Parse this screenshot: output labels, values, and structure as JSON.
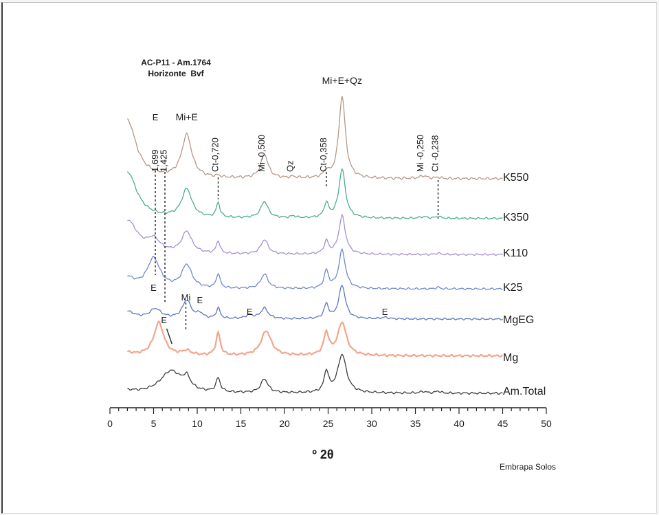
{
  "chart_data": {
    "type": "line",
    "title": "AC-P11 - Am.1764",
    "subtitle": "Horizonte  Bvf",
    "xlabel": "º 2θ",
    "ylabel": "",
    "xlim": [
      0,
      50
    ],
    "xticks": [
      "0",
      "5",
      "10",
      "15",
      "20",
      "25",
      "30",
      "35",
      "40",
      "45",
      "50"
    ],
    "grid": false,
    "legend": "right",
    "credit": "Embrapa Solos",
    "series": [
      {
        "name": "K550",
        "color": "#b59688",
        "baseline": 12,
        "scale": 1.0,
        "peaks": [
          [
            2.0,
            85,
            1.2
          ],
          [
            8.8,
            62,
            0.7
          ],
          [
            12.4,
            2,
            0.3
          ],
          [
            17.7,
            35,
            0.5
          ],
          [
            21.0,
            2,
            0.3
          ],
          [
            24.8,
            9,
            0.3
          ],
          [
            26.6,
            120,
            0.45
          ],
          [
            35.9,
            4,
            0.5
          ],
          [
            37.6,
            2,
            0.3
          ]
        ],
        "x": [],
        "y": []
      },
      {
        "name": "K350",
        "color": "#4dab8d",
        "baseline": 8,
        "scale": 0.75,
        "peaks": [
          [
            2.0,
            90,
            1.3
          ],
          [
            8.8,
            55,
            0.7
          ],
          [
            12.4,
            28,
            0.25
          ],
          [
            17.7,
            32,
            0.5
          ],
          [
            21.0,
            4,
            0.3
          ],
          [
            24.8,
            28,
            0.3
          ],
          [
            26.6,
            95,
            0.45
          ],
          [
            35.9,
            3,
            0.5
          ],
          [
            37.6,
            4,
            0.3
          ]
        ],
        "x": [],
        "y": []
      },
      {
        "name": "K110",
        "color": "#a58fd0",
        "baseline": 6,
        "scale": 0.7,
        "peaks": [
          [
            2.0,
            70,
            1.4
          ],
          [
            5.0,
            25,
            0.9
          ],
          [
            8.8,
            45,
            0.7
          ],
          [
            12.4,
            26,
            0.25
          ],
          [
            17.7,
            30,
            0.5
          ],
          [
            24.8,
            26,
            0.3
          ],
          [
            26.6,
            80,
            0.45
          ],
          [
            37.6,
            3,
            0.3
          ]
        ],
        "x": [],
        "y": []
      },
      {
        "name": "K25",
        "color": "#6f88cc",
        "baseline": 6,
        "scale": 0.75,
        "peaks": [
          [
            2.0,
            20,
            1.0
          ],
          [
            5.0,
            58,
            0.9
          ],
          [
            8.8,
            45,
            0.7
          ],
          [
            12.4,
            28,
            0.25
          ],
          [
            17.7,
            28,
            0.5
          ],
          [
            24.8,
            34,
            0.3
          ],
          [
            26.6,
            75,
            0.45
          ],
          [
            37.6,
            3,
            0.3
          ]
        ],
        "x": [],
        "y": []
      },
      {
        "name": "MgEG",
        "color": "#5a74c4",
        "baseline": 5,
        "scale": 0.7,
        "peaks": [
          [
            2.0,
            15,
            1.0
          ],
          [
            5.2,
            20,
            0.8
          ],
          [
            8.8,
            38,
            0.6
          ],
          [
            10.3,
            10,
            0.4
          ],
          [
            12.4,
            22,
            0.25
          ],
          [
            16.0,
            8,
            0.5
          ],
          [
            17.7,
            22,
            0.5
          ],
          [
            24.8,
            30,
            0.3
          ],
          [
            26.6,
            70,
            0.45
          ],
          [
            31.5,
            3,
            0.5
          ]
        ],
        "x": [],
        "y": []
      },
      {
        "name": "Mg",
        "color": "#f4a48a",
        "baseline": 8,
        "scale": 0.8,
        "peaks": [
          [
            2.0,
            5,
            1.0
          ],
          [
            5.6,
            60,
            0.7
          ],
          [
            8.8,
            8,
            0.6
          ],
          [
            12.4,
            40,
            0.3
          ],
          [
            17.9,
            45,
            0.7
          ],
          [
            24.8,
            40,
            0.35
          ],
          [
            26.6,
            60,
            0.6
          ]
        ],
        "x": [],
        "y": []
      },
      {
        "name": "Am.Total",
        "color": "#3c3c3c",
        "baseline": 5,
        "scale": 0.8,
        "peaks": [
          [
            2.0,
            4,
            1.0
          ],
          [
            7.0,
            40,
            1.5
          ],
          [
            8.8,
            20,
            0.5
          ],
          [
            12.4,
            25,
            0.3
          ],
          [
            17.7,
            25,
            0.5
          ],
          [
            24.8,
            38,
            0.3
          ],
          [
            26.6,
            70,
            0.6
          ],
          [
            35.9,
            3,
            0.4
          ],
          [
            37.6,
            4,
            0.3
          ]
        ],
        "x": [],
        "y": []
      }
    ],
    "annotations": [
      {
        "text": "E",
        "x": 5.2,
        "track": "K550",
        "rotate": false
      },
      {
        "text": "Mi+E",
        "x": 8.8,
        "track": "K550",
        "rotate": false
      },
      {
        "text": "1,699",
        "x": 5.5,
        "track": "K550",
        "rotate": true
      },
      {
        "text": "1,425",
        "x": 6.5,
        "track": "K550",
        "rotate": true
      },
      {
        "text": "Ct-0,720",
        "x": 12.4,
        "track": "K550",
        "rotate": true
      },
      {
        "text": "Mi -0,500",
        "x": 17.7,
        "track": "K550",
        "rotate": true
      },
      {
        "text": "Qz",
        "x": 21.0,
        "track": "K550",
        "rotate": true
      },
      {
        "text": "Ct-0,358",
        "x": 24.8,
        "track": "K550",
        "rotate": true
      },
      {
        "text": "Mi+E+Qz",
        "x": 26.6,
        "track": "K550",
        "rotate": false
      },
      {
        "text": "Mi -0,250",
        "x": 35.9,
        "track": "K550",
        "rotate": true
      },
      {
        "text": "Ct -0,238",
        "x": 37.6,
        "track": "K550",
        "rotate": true
      },
      {
        "text": "E",
        "x": 5.0,
        "track": "MgEG",
        "rotate": false
      },
      {
        "text": "Mi",
        "x": 8.7,
        "track": "MgEG",
        "rotate": false
      },
      {
        "text": "E",
        "x": 10.3,
        "track": "MgEG",
        "rotate": false
      },
      {
        "text": "E",
        "x": 16.0,
        "track": "MgEG",
        "rotate": false
      },
      {
        "text": "E",
        "x": 31.5,
        "track": "MgEG",
        "rotate": false
      },
      {
        "text": "E",
        "x": 6.2,
        "track": "Mg",
        "rotate": false
      }
    ]
  }
}
